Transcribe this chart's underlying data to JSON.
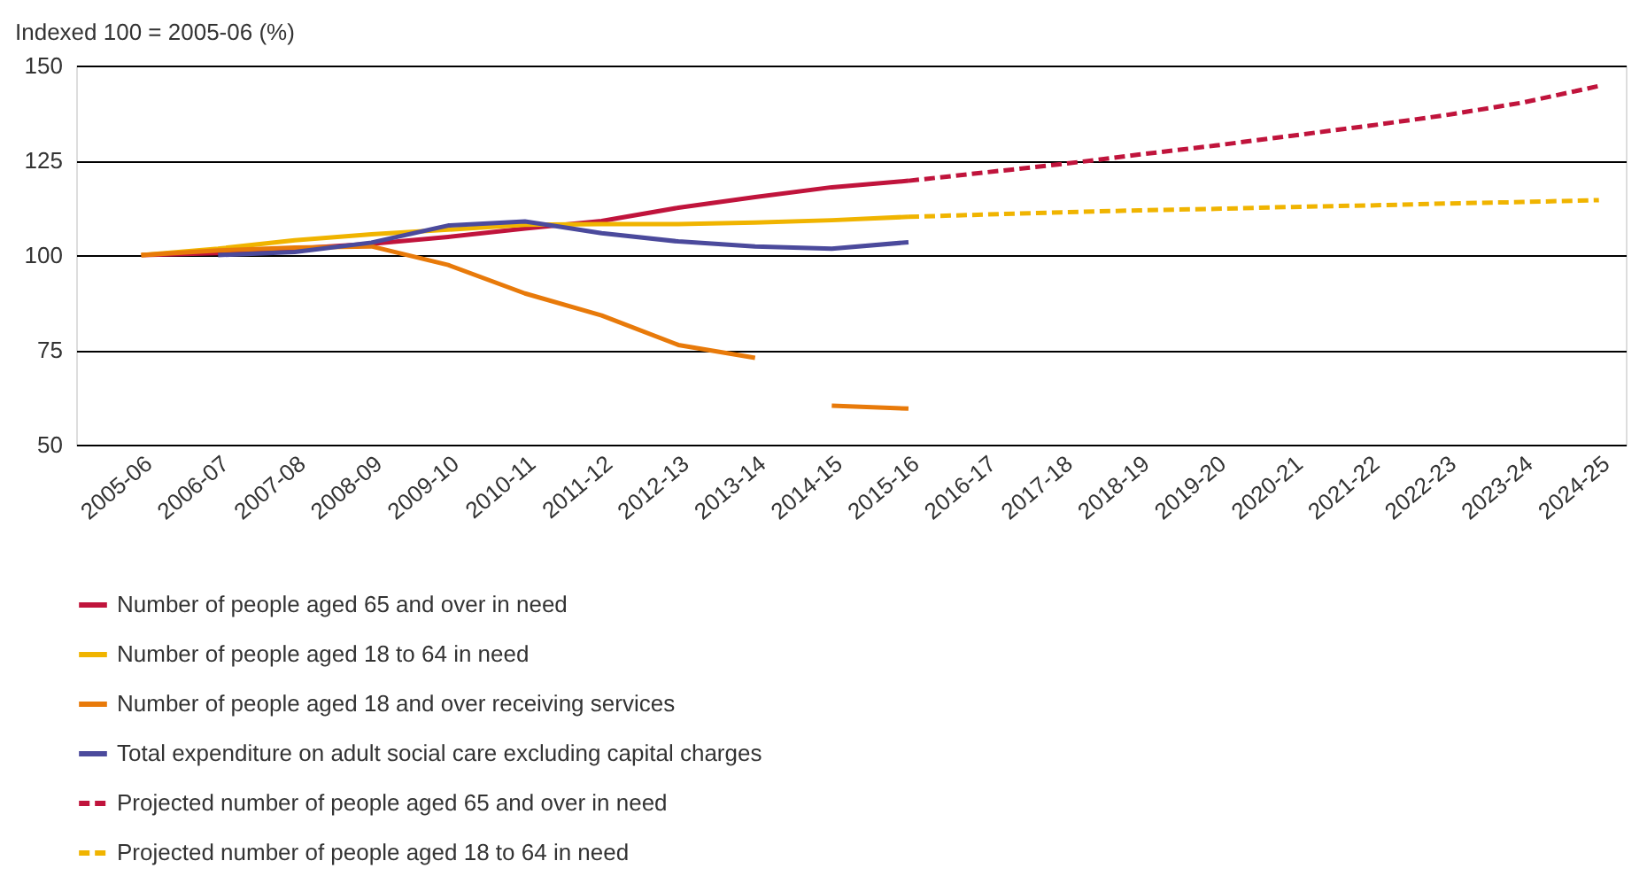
{
  "chart_data": {
    "type": "line",
    "ylabel": "Indexed 100 = 2005-06 (%)",
    "categories": [
      "2005-06",
      "2006-07",
      "2007-08",
      "2008-09",
      "2009-10",
      "2010-11",
      "2011-12",
      "2012-13",
      "2013-14",
      "2014-15",
      "2015-16",
      "2016-17",
      "2017-18",
      "2018-19",
      "2019-20",
      "2020-21",
      "2021-22",
      "2022-23",
      "2023-24",
      "2024-25"
    ],
    "ylim": [
      50,
      150
    ],
    "yticks": [
      50,
      75,
      100,
      125,
      150
    ],
    "grid": "y",
    "legend": "bottom",
    "line_style": "solid",
    "marker": "none",
    "series": [
      {
        "name": "Number of people aged 65 and over in need",
        "color": "#c0143c",
        "values": [
          100,
          100.5,
          101.7,
          103,
          104.8,
          107,
          109,
          112.5,
          115.3,
          117.9,
          119.6,
          null,
          null,
          null,
          null,
          null,
          null,
          null,
          null,
          null
        ]
      },
      {
        "name": "Number of people aged 18 to 64 in need",
        "color": "#f0b400",
        "values": [
          100,
          101.7,
          103.9,
          105.5,
          106.7,
          108,
          108.2,
          108.2,
          108.6,
          109.2,
          110.1,
          null,
          null,
          null,
          null,
          null,
          null,
          null,
          null,
          null
        ]
      },
      {
        "name": "Number of people aged 18 and over receiving services",
        "color": "#e87a0a",
        "values": [
          100,
          101.2,
          102,
          102.3,
          97.4,
          89.9,
          84.1,
          76.3,
          72.9,
          null,
          null,
          null,
          null,
          null,
          null,
          null,
          null,
          null,
          null,
          null
        ]
      },
      {
        "name": "Total expenditure on adult social care excluding capital charges",
        "color": "#4b4a9c",
        "values": [
          null,
          100,
          100.8,
          103.3,
          107.8,
          108.9,
          105.8,
          103.6,
          102.3,
          101.7,
          103.4,
          null,
          null,
          null,
          null,
          null,
          null,
          null,
          null,
          null
        ]
      },
      {
        "name": "Projected number of people aged 65 and over in need",
        "color": "#c0143c",
        "line_style": "dashed",
        "values": [
          null,
          null,
          null,
          null,
          null,
          null,
          null,
          null,
          null,
          null,
          119.6,
          121.8,
          124,
          126.5,
          128.9,
          131.5,
          134.1,
          136.9,
          140.2,
          144.6
        ]
      },
      {
        "name": "Projected number of people aged 18 to 64 in need",
        "color": "#f0b400",
        "line_style": "dashed",
        "values": [
          null,
          null,
          null,
          null,
          null,
          null,
          null,
          null,
          null,
          null,
          110.1,
          110.7,
          111.3,
          111.8,
          112.2,
          112.7,
          113.1,
          113.6,
          114,
          114.5
        ]
      },
      {
        "color": "#e87a0a",
        "values": [
          null,
          null,
          null,
          null,
          null,
          null,
          null,
          null,
          null,
          60.3,
          59.5,
          null,
          null,
          null,
          null,
          null,
          null,
          null,
          null,
          null
        ]
      }
    ]
  }
}
